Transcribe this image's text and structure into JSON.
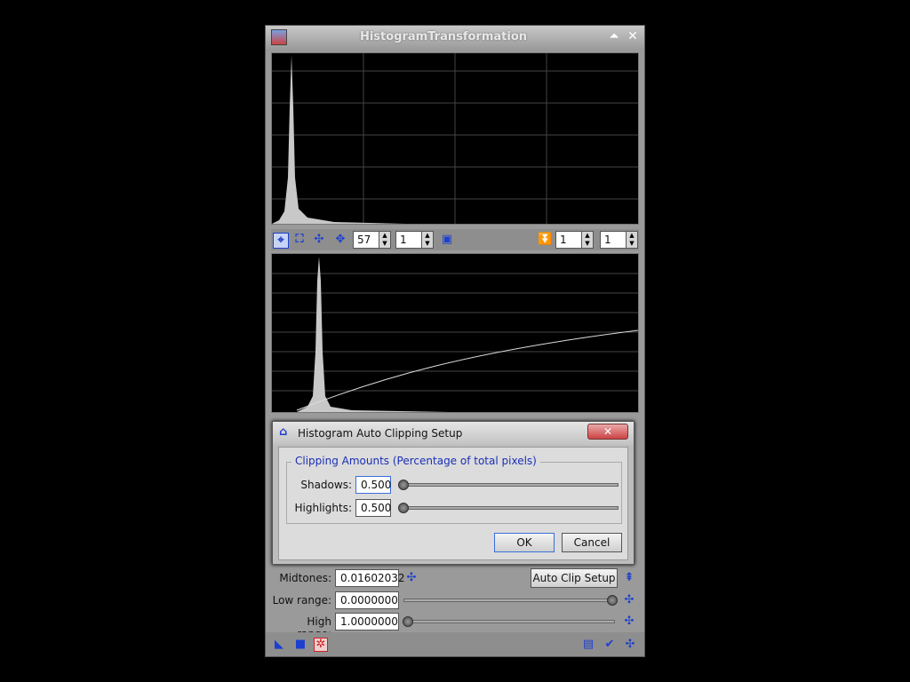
{
  "window": {
    "title": "HistogramTransformation"
  },
  "toolbar": {
    "zoom_x": "57",
    "zoom_y": "1",
    "right_zoom_x": "1",
    "right_zoom_y": "1"
  },
  "panel": {
    "midtones_label": "Midtones:",
    "midtones_value": "0.01602032",
    "auto_clip_label": "Auto Clip Setup",
    "low_range_label": "Low range:",
    "low_range_value": "0.0000000",
    "high_range_label": "High range:",
    "high_range_value": "1.0000000",
    "low_range_slider": 1.0,
    "high_range_slider": 0.0
  },
  "dialog": {
    "title": "Histogram Auto Clipping Setup",
    "group_title": "Clipping Amounts (Percentage of total pixels)",
    "shadows_label": "Shadows:",
    "shadows_value": "0.500",
    "highlights_label": "Highlights:",
    "highlights_value": "0.500",
    "ok_label": "OK",
    "cancel_label": "Cancel"
  },
  "icons": {
    "titlebar": [
      "app-icon",
      "shade-icon",
      "close-icon"
    ],
    "toolbar": [
      "crosshair-icon",
      "zoom-fit-icon",
      "zoom-in-icon",
      "pan-icon",
      "channel-one-icon",
      "collapse-icon"
    ],
    "bottom": [
      "new-instance-icon",
      "view-icon",
      "reset-icon",
      "apply-icon",
      "check-icon",
      "expand-icon"
    ]
  },
  "colors": {
    "accent": "#1b3fcf",
    "plot_background": "#000000",
    "histogram": "#c8c8c8"
  }
}
